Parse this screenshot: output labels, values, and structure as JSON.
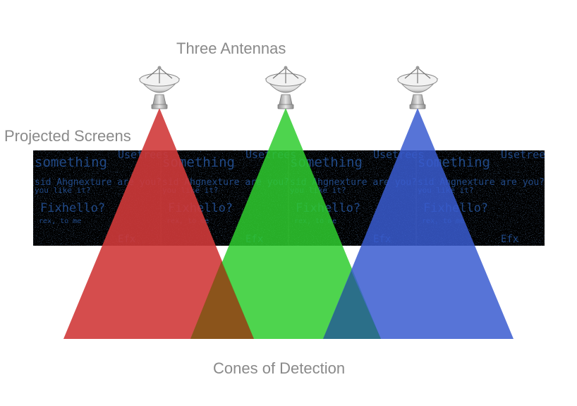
{
  "title": "Three Antennas",
  "left_label": "Projected Screens",
  "bottom_label": "Cones of Detection",
  "screen_text_lines": [
    "something",
    "sid Ahgnexture are you?",
    "you like it?",
    "Fixhello?",
    "rex, to me",
    "Efx",
    "Usetrees"
  ],
  "screen_panel_count": 4,
  "antennas": [
    {
      "name": "left",
      "cone_color": "#d03a3a"
    },
    {
      "name": "middle",
      "cone_color": "#2fcc2f"
    },
    {
      "name": "right",
      "cone_color": "#3a5cd0"
    }
  ],
  "overlap_colors": {
    "red_green": "#8f4e1a",
    "green_blue": "#2a6f86"
  },
  "icon_names": [
    "satellite-dish-icon"
  ]
}
